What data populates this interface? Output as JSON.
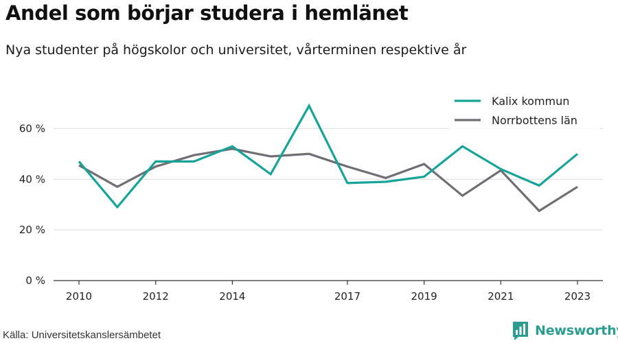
{
  "header": {
    "title": "Andel som börjar studera i hemlänet",
    "subtitle": "Nya studenter på högskolor och universitet, vårterminen respektive år"
  },
  "footer": {
    "source": "Källa: Universitetskanslersämbetet",
    "brand": "Newsworthy",
    "brand_icon": "bar-chart-logo-icon"
  },
  "colors": {
    "kalix": "#16a398",
    "norrbotten": "#6e6e73",
    "grid": "#dcdcdc",
    "brand": "#2a9d8f"
  },
  "chart_data": {
    "type": "line",
    "title": "Andel som börjar studera i hemlänet",
    "subtitle": "Nya studenter på högskolor och universitet, vårterminen respektive år",
    "x": [
      2010,
      2011,
      2012,
      2013,
      2014,
      2015,
      2016,
      2017,
      2018,
      2019,
      2020,
      2021,
      2022,
      2023
    ],
    "x_ticks": [
      "2010",
      "2012",
      "2014",
      "2017",
      "2019",
      "2021",
      "2023"
    ],
    "y_ticks": [
      "0 %",
      "20 %",
      "40 %",
      "60 %"
    ],
    "ylim": [
      0,
      75
    ],
    "grid": true,
    "legend_position": "top-right",
    "series": [
      {
        "name": "Kalix kommun",
        "color": "#16a398",
        "values": [
          47,
          29,
          47,
          47,
          53,
          42,
          69,
          38.5,
          39,
          41,
          53,
          44,
          37.5,
          50
        ]
      },
      {
        "name": "Norrbottens län",
        "color": "#6e6e73",
        "values": [
          45.5,
          37,
          45,
          49.5,
          52,
          49,
          50,
          45,
          40.5,
          46,
          33.5,
          43.5,
          27.5,
          37
        ]
      }
    ]
  }
}
